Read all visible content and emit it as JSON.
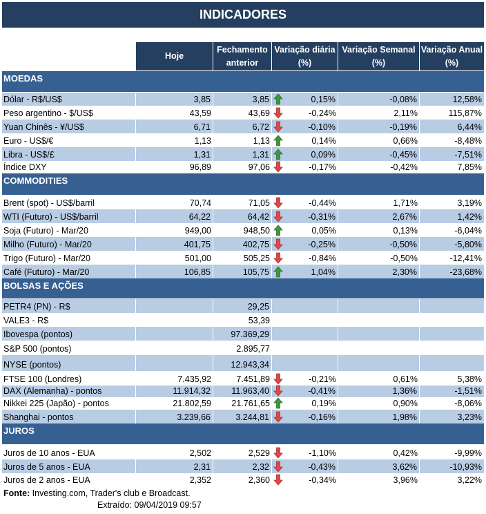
{
  "title": "INDICADORES",
  "headers": [
    "Hoje",
    "Fechamento anterior",
    "Variação diária (%)",
    "Variação Semanal (%)",
    "Variação Anual (%)"
  ],
  "colors": {
    "header": "#243f60",
    "section": "#366092",
    "stripe": "#b8cce4",
    "up": "#3a9a3a",
    "down": "#e04848"
  },
  "sections": [
    {
      "name": "MOEDAS",
      "rows": [
        [
          "Dólar - R$/US$",
          "3,85",
          "3,85",
          "up",
          "0,15%",
          "-0,08%",
          "12,58%"
        ],
        [
          "Peso argentino - $/US$",
          "43,59",
          "43,69",
          "down",
          "-0,24%",
          "2,11%",
          "115,87%"
        ],
        [
          "Yuan Chinês - ¥/US$",
          "6,71",
          "6,72",
          "down",
          "-0,10%",
          "-0,19%",
          "6,44%"
        ],
        [
          "Euro - US$/€",
          "1,13",
          "1,13",
          "up",
          "0,14%",
          "0,66%",
          "-8,48%"
        ],
        [
          "Libra - US$/£",
          "1,31",
          "1,31",
          "up",
          "0,09%",
          "-0,45%",
          "-7,51%"
        ],
        [
          "Índice DXY",
          "96,89",
          "97,06",
          "down",
          "-0,17%",
          "-0,42%",
          "7,85%"
        ]
      ]
    },
    {
      "name": "COMMODITIES",
      "rows": [
        [
          "Brent (spot) - US$/barril",
          "70,74",
          "71,05",
          "down",
          "-0,44%",
          "1,71%",
          "3,19%"
        ],
        [
          "WTI (Futuro) - US$/barril",
          "64,22",
          "64,42",
          "down",
          "-0,31%",
          "2,67%",
          "1,42%"
        ],
        [
          "Soja (Futuro) - Mar/20",
          "949,00",
          "948,50",
          "up",
          "0,05%",
          "0,13%",
          "-6,04%"
        ],
        [
          "Milho (Futuro) - Mar/20",
          "401,75",
          "402,75",
          "down",
          "-0,25%",
          "-0,50%",
          "-5,80%"
        ],
        [
          "Trigo (Futuro) - Mar/20",
          "501,00",
          "505,25",
          "down",
          "-0,84%",
          "-0,50%",
          "-12,41%"
        ],
        [
          "Café (Futuro) - Mar/20",
          "106,85",
          "105,75",
          "up",
          "1,04%",
          "2,30%",
          "-23,68%"
        ]
      ]
    },
    {
      "name": "BOLSAS E AÇÕES",
      "rows": [
        [
          "PETR4 (PN) - R$",
          "",
          "29,25",
          "",
          "",
          "",
          ""
        ],
        [
          "VALE3 - R$",
          "",
          "53,39",
          "",
          "",
          "",
          ""
        ],
        [
          "Ibovespa (pontos)",
          "",
          "97.369,29",
          "",
          "",
          "",
          ""
        ],
        [
          "S&P 500 (pontos)",
          "",
          "2.895,77",
          "",
          "",
          "",
          ""
        ],
        [
          "NYSE (pontos)",
          "",
          "12.943,34",
          "",
          "",
          "",
          ""
        ],
        [
          "FTSE 100 (Londres)",
          "7.435,92",
          "7.451,89",
          "down",
          "-0,21%",
          "0,61%",
          "5,38%"
        ],
        [
          "DAX (Alemanha) - pontos",
          "11.914,32",
          "11.963,40",
          "down",
          "-0,41%",
          "1,36%",
          "-1,51%"
        ],
        [
          "Nikkei 225 (Japão) - pontos",
          "21.802,59",
          "21.761,65",
          "up",
          "0,19%",
          "0,90%",
          "-8,06%"
        ],
        [
          "Shanghai - pontos",
          "3.239,66",
          "3.244,81",
          "down",
          "-0,16%",
          "1,98%",
          "3,23%"
        ]
      ]
    },
    {
      "name": "JUROS",
      "rows": [
        [
          "Juros de 10 anos - EUA",
          "2,502",
          "2,529",
          "down",
          "-1,10%",
          "0,42%",
          "-9,99%"
        ],
        [
          "Juros de 5 anos - EUA",
          "2,31",
          "2,32",
          "down",
          "-0,43%",
          "3,62%",
          "-10,93%"
        ],
        [
          "Juros de 2 anos - EUA",
          "2,352",
          "2,360",
          "down",
          "-0,34%",
          "3,96%",
          "3,22%"
        ]
      ]
    }
  ],
  "footer": {
    "source_label": "Fonte:",
    "source": " Investing.com, Trader's club e Broadcast.",
    "extracted": "Extraído:  09/04/2019 09:57"
  }
}
